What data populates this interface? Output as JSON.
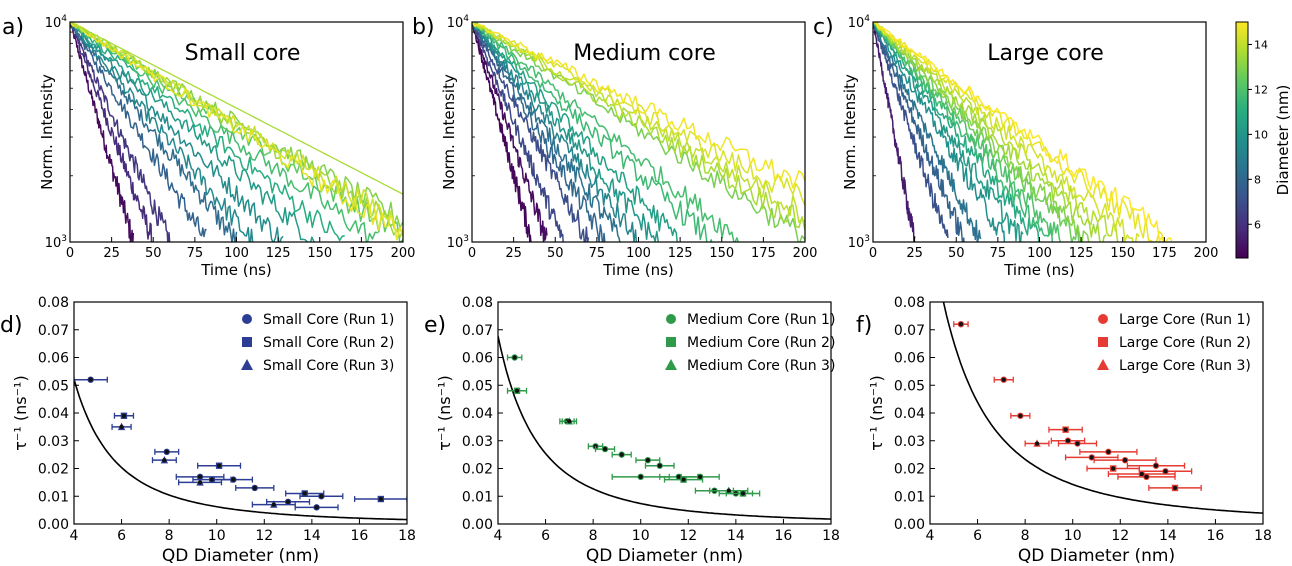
{
  "chart_data": [
    {
      "panel": "a)",
      "type": "line",
      "title": "Small core",
      "xlabel": "Time (ns)",
      "ylabel": "Norm. Intensity",
      "xlim": [
        0,
        200
      ],
      "ylim": [
        1000,
        10000
      ],
      "yscale": "log",
      "xticks": [
        "0",
        "25",
        "50",
        "75",
        "100",
        "125",
        "150",
        "175",
        "200"
      ],
      "yticks": [
        {
          "value": 1000,
          "label": "10^3"
        },
        {
          "value": 10000,
          "label": "10^4"
        }
      ],
      "series": [
        {
          "diameter": 4.8,
          "x_end": 38,
          "noisy": true
        },
        {
          "diameter": 5.8,
          "x_end": 50,
          "noisy": true
        },
        {
          "diameter": 6.2,
          "x_end": 60,
          "noisy": true
        },
        {
          "diameter": 7.8,
          "x_end": 82,
          "noisy": true
        },
        {
          "diameter": 8.2,
          "x_end": 100,
          "noisy": true
        },
        {
          "diameter": 9.4,
          "x_end": 110,
          "noisy": true
        },
        {
          "diameter": 9.6,
          "x_end": 128,
          "noisy": true
        },
        {
          "diameter": 10.2,
          "x_end": 148,
          "noisy": true
        },
        {
          "diameter": 11.0,
          "x_end": 165,
          "noisy": true
        },
        {
          "diameter": 11.8,
          "x_end": 185,
          "noisy": true
        },
        {
          "diameter": 12.4,
          "x_end": 200,
          "y_end": 1050,
          "noisy": true
        },
        {
          "diameter": 13.0,
          "x_end": 200,
          "y_end": 1250,
          "noisy": true
        },
        {
          "diameter": 13.4,
          "x_end": 200,
          "y_end": 1150,
          "noisy": true
        },
        {
          "diameter": 14.2,
          "x_end": 200,
          "y_end": 1200,
          "noisy": true
        },
        {
          "diameter": 14.6,
          "x_end": 200,
          "y_end": 1080,
          "noisy": true
        },
        {
          "diameter": 13.6,
          "x_end": 200,
          "y_end": 1650,
          "noisy": false
        }
      ]
    },
    {
      "panel": "b)",
      "type": "line",
      "title": "Medium core",
      "xlabel": "Time (ns)",
      "ylabel": "Norm. Intensity",
      "xlim": [
        0,
        200
      ],
      "ylim": [
        1000,
        10000
      ],
      "yscale": "log",
      "xticks": [
        "0",
        "25",
        "50",
        "75",
        "100",
        "125",
        "150",
        "175",
        "200"
      ],
      "yticks": [
        {
          "value": 1000,
          "label": "10^3"
        },
        {
          "value": 10000,
          "label": "10^4"
        }
      ],
      "series": [
        {
          "diameter": 4.7,
          "x_end": 36,
          "noisy": true
        },
        {
          "diameter": 4.9,
          "x_end": 45,
          "noisy": true
        },
        {
          "diameter": 6.8,
          "x_end": 55,
          "noisy": true
        },
        {
          "diameter": 7.0,
          "x_end": 70,
          "noisy": true
        },
        {
          "diameter": 8.0,
          "x_end": 80,
          "noisy": true
        },
        {
          "diameter": 8.4,
          "x_end": 90,
          "noisy": true
        },
        {
          "diameter": 9.2,
          "x_end": 100,
          "noisy": true
        },
        {
          "diameter": 10.0,
          "x_end": 112,
          "noisy": true
        },
        {
          "diameter": 10.4,
          "x_end": 125,
          "noisy": true
        },
        {
          "diameter": 11.6,
          "x_end": 145,
          "noisy": true
        },
        {
          "diameter": 11.8,
          "x_end": 162,
          "noisy": true
        },
        {
          "diameter": 12.8,
          "x_end": 200,
          "y_end": 1050,
          "noisy": true
        },
        {
          "diameter": 13.6,
          "x_end": 200,
          "y_end": 1200,
          "noisy": true
        },
        {
          "diameter": 14.0,
          "x_end": 200,
          "y_end": 1350,
          "noisy": true
        },
        {
          "diameter": 14.4,
          "x_end": 200,
          "y_end": 1550,
          "noisy": true
        },
        {
          "diameter": 14.8,
          "x_end": 200,
          "y_end": 1800,
          "noisy": true
        }
      ]
    },
    {
      "panel": "c)",
      "type": "line",
      "title": "Large core",
      "xlabel": "Time (ns)",
      "ylabel": "Norm. Intensity",
      "xlim": [
        0,
        200
      ],
      "ylim": [
        1000,
        10000
      ],
      "yscale": "log",
      "xticks": [
        "0",
        "25",
        "50",
        "75",
        "100",
        "125",
        "150",
        "175",
        "200"
      ],
      "yticks": [
        {
          "value": 1000,
          "label": "10^3"
        },
        {
          "value": 10000,
          "label": "10^4"
        }
      ],
      "series": [
        {
          "diameter": 5.3,
          "x_end": 25,
          "noisy": true
        },
        {
          "diameter": 7.1,
          "x_end": 45,
          "noisy": true
        },
        {
          "diameter": 7.8,
          "x_end": 55,
          "noisy": true
        },
        {
          "diameter": 8.5,
          "x_end": 65,
          "noisy": true
        },
        {
          "diameter": 9.7,
          "x_end": 80,
          "noisy": true
        },
        {
          "diameter": 10.2,
          "x_end": 90,
          "noisy": true
        },
        {
          "diameter": 10.8,
          "x_end": 100,
          "noisy": true
        },
        {
          "diameter": 11.6,
          "x_end": 108,
          "noisy": true
        },
        {
          "diameter": 12.0,
          "x_end": 115,
          "noisy": true
        },
        {
          "diameter": 12.6,
          "x_end": 125,
          "noisy": true
        },
        {
          "diameter": 13.0,
          "x_end": 130,
          "noisy": true
        },
        {
          "diameter": 13.5,
          "x_end": 140,
          "noisy": true
        },
        {
          "diameter": 13.8,
          "x_end": 150,
          "noisy": true
        },
        {
          "diameter": 14.3,
          "x_end": 160,
          "noisy": true
        },
        {
          "diameter": 14.6,
          "x_end": 175,
          "noisy": true
        },
        {
          "diameter": 15.0,
          "x_end": 182,
          "noisy": true
        }
      ]
    },
    {
      "type": "colorbar",
      "label": "Diameter (nm)",
      "colormap": "viridis",
      "range": [
        4.5,
        15
      ],
      "ticks": [
        "6",
        "8",
        "10",
        "12",
        "14"
      ]
    },
    {
      "panel": "d)",
      "type": "scatter",
      "xlabel": "QD Diameter (nm)",
      "ylabel": "τ⁻¹ (ns⁻¹)",
      "xlim": [
        4,
        18
      ],
      "ylim": [
        0,
        0.08
      ],
      "xticks": [
        "4",
        "6",
        "8",
        "10",
        "12",
        "14",
        "16",
        "18"
      ],
      "yticks": [
        "0.00",
        "0.01",
        "0.02",
        "0.03",
        "0.04",
        "0.05",
        "0.06",
        "0.07",
        "0.08"
      ],
      "color": "#2c3e93",
      "legend": {
        "position": "top-right",
        "entries": [
          {
            "marker": "circle",
            "label": "Small Core (Run 1)"
          },
          {
            "marker": "square",
            "label": "Small Core (Run 2)"
          },
          {
            "marker": "triangle",
            "label": "Small Core (Run 3)"
          }
        ]
      },
      "fit": {
        "a": 1.3,
        "n": 2.32
      },
      "points": [
        {
          "x": 4.7,
          "y": 0.052,
          "xerr": 0.7,
          "yerr": 0.0007,
          "marker": "circle"
        },
        {
          "x": 6.1,
          "y": 0.039,
          "xerr": 0.4,
          "yerr": 0.0008,
          "marker": "square"
        },
        {
          "x": 6.0,
          "y": 0.035,
          "xerr": 0.4,
          "yerr": 0.0007,
          "marker": "triangle"
        },
        {
          "x": 7.9,
          "y": 0.026,
          "xerr": 0.5,
          "yerr": 0.0006,
          "marker": "circle"
        },
        {
          "x": 7.8,
          "y": 0.023,
          "xerr": 0.5,
          "yerr": 0.0006,
          "marker": "triangle"
        },
        {
          "x": 9.3,
          "y": 0.017,
          "xerr": 1.0,
          "yerr": 0.0006,
          "marker": "circle"
        },
        {
          "x": 9.3,
          "y": 0.015,
          "xerr": 0.9,
          "yerr": 0.0006,
          "marker": "triangle"
        },
        {
          "x": 9.8,
          "y": 0.016,
          "xerr": 0.8,
          "yerr": 0.0006,
          "marker": "circle"
        },
        {
          "x": 10.1,
          "y": 0.021,
          "xerr": 0.9,
          "yerr": 0.0008,
          "marker": "square"
        },
        {
          "x": 10.7,
          "y": 0.016,
          "xerr": 0.8,
          "yerr": 0.0006,
          "marker": "circle"
        },
        {
          "x": 11.6,
          "y": 0.013,
          "xerr": 0.8,
          "yerr": 0.0006,
          "marker": "circle"
        },
        {
          "x": 12.4,
          "y": 0.007,
          "xerr": 0.9,
          "yerr": 0.0006,
          "marker": "triangle"
        },
        {
          "x": 13.0,
          "y": 0.008,
          "xerr": 0.9,
          "yerr": 0.0006,
          "marker": "circle"
        },
        {
          "x": 13.7,
          "y": 0.011,
          "xerr": 0.8,
          "yerr": 0.0006,
          "marker": "square"
        },
        {
          "x": 14.2,
          "y": 0.006,
          "xerr": 0.9,
          "yerr": 0.0006,
          "marker": "circle"
        },
        {
          "x": 14.4,
          "y": 0.01,
          "xerr": 0.9,
          "yerr": 0.0006,
          "marker": "circle"
        },
        {
          "x": 16.9,
          "y": 0.009,
          "xerr": 1.1,
          "yerr": 0.0006,
          "marker": "square"
        }
      ]
    },
    {
      "panel": "e)",
      "type": "scatter",
      "xlabel": "QD Diameter (nm)",
      "ylabel": "τ⁻¹ (ns⁻¹)",
      "xlim": [
        4,
        18
      ],
      "ylim": [
        0,
        0.08
      ],
      "xticks": [
        "4",
        "6",
        "8",
        "10",
        "12",
        "14",
        "16",
        "18"
      ],
      "yticks": [
        "0.00",
        "0.01",
        "0.02",
        "0.03",
        "0.04",
        "0.05",
        "0.06",
        "0.07",
        "0.08"
      ],
      "color": "#2e9a4a",
      "legend": {
        "position": "top-right",
        "entries": [
          {
            "marker": "circle",
            "label": "Medium Core (Run 1)"
          },
          {
            "marker": "square",
            "label": "Medium Core (Run 2)"
          },
          {
            "marker": "triangle",
            "label": "Medium Core (Run 3)"
          }
        ]
      },
      "fit": {
        "a": 1.94,
        "n": 2.42
      },
      "points": [
        {
          "x": 4.7,
          "y": 0.06,
          "xerr": 0.3,
          "yerr": 0.0008,
          "marker": "circle"
        },
        {
          "x": 4.8,
          "y": 0.048,
          "xerr": 0.4,
          "yerr": 0.0008,
          "marker": "square"
        },
        {
          "x": 6.9,
          "y": 0.037,
          "xerr": 0.3,
          "yerr": 0.0007,
          "marker": "circle"
        },
        {
          "x": 7.0,
          "y": 0.037,
          "xerr": 0.3,
          "yerr": 0.0007,
          "marker": "triangle"
        },
        {
          "x": 8.1,
          "y": 0.028,
          "xerr": 0.3,
          "yerr": 0.0006,
          "marker": "circle"
        },
        {
          "x": 8.5,
          "y": 0.027,
          "xerr": 0.4,
          "yerr": 0.0006,
          "marker": "circle"
        },
        {
          "x": 9.2,
          "y": 0.025,
          "xerr": 0.4,
          "yerr": 0.0006,
          "marker": "circle"
        },
        {
          "x": 10.0,
          "y": 0.017,
          "xerr": 1.2,
          "yerr": 0.0006,
          "marker": "circle"
        },
        {
          "x": 10.3,
          "y": 0.023,
          "xerr": 0.5,
          "yerr": 0.0006,
          "marker": "circle"
        },
        {
          "x": 10.8,
          "y": 0.021,
          "xerr": 0.6,
          "yerr": 0.0006,
          "marker": "circle"
        },
        {
          "x": 11.6,
          "y": 0.017,
          "xerr": 0.8,
          "yerr": 0.0006,
          "marker": "circle"
        },
        {
          "x": 11.8,
          "y": 0.016,
          "xerr": 0.8,
          "yerr": 0.0006,
          "marker": "square"
        },
        {
          "x": 12.5,
          "y": 0.017,
          "xerr": 0.8,
          "yerr": 0.0006,
          "marker": "circle"
        },
        {
          "x": 13.1,
          "y": 0.012,
          "xerr": 0.8,
          "yerr": 0.0006,
          "marker": "circle"
        },
        {
          "x": 13.7,
          "y": 0.012,
          "xerr": 0.8,
          "yerr": 0.0006,
          "marker": "triangle"
        },
        {
          "x": 14.0,
          "y": 0.011,
          "xerr": 0.7,
          "yerr": 0.0006,
          "marker": "circle"
        },
        {
          "x": 14.3,
          "y": 0.011,
          "xerr": 0.7,
          "yerr": 0.0006,
          "marker": "square"
        }
      ]
    },
    {
      "panel": "f)",
      "type": "scatter",
      "xlabel": "QD Diameter (nm)",
      "ylabel": "τ⁻¹ (ns⁻¹)",
      "xlim": [
        4,
        18
      ],
      "ylim": [
        0,
        0.08
      ],
      "xticks": [
        "4",
        "6",
        "8",
        "10",
        "12",
        "14",
        "16",
        "18"
      ],
      "yticks": [
        "0.00",
        "0.01",
        "0.02",
        "0.03",
        "0.04",
        "0.05",
        "0.06",
        "0.07",
        "0.08"
      ],
      "color": "#e53b33",
      "legend": {
        "position": "top-right",
        "entries": [
          {
            "marker": "circle",
            "label": "Large Core (Run 1)"
          },
          {
            "marker": "square",
            "label": "Large Core (Run 2)"
          },
          {
            "marker": "triangle",
            "label": "Large Core (Run 3)"
          }
        ]
      },
      "fit": {
        "a": 2.26,
        "n": 2.2
      },
      "points": [
        {
          "x": 5.3,
          "y": 0.072,
          "xerr": 0.3,
          "yerr": 0.0008,
          "marker": "circle"
        },
        {
          "x": 7.1,
          "y": 0.052,
          "xerr": 0.4,
          "yerr": 0.0007,
          "marker": "circle"
        },
        {
          "x": 7.8,
          "y": 0.039,
          "xerr": 0.4,
          "yerr": 0.0007,
          "marker": "circle"
        },
        {
          "x": 8.5,
          "y": 0.029,
          "xerr": 0.5,
          "yerr": 0.0006,
          "marker": "triangle"
        },
        {
          "x": 9.7,
          "y": 0.034,
          "xerr": 0.7,
          "yerr": 0.0007,
          "marker": "square"
        },
        {
          "x": 9.8,
          "y": 0.03,
          "xerr": 0.7,
          "yerr": 0.0006,
          "marker": "circle"
        },
        {
          "x": 10.2,
          "y": 0.029,
          "xerr": 0.8,
          "yerr": 0.0006,
          "marker": "circle"
        },
        {
          "x": 10.8,
          "y": 0.024,
          "xerr": 1.1,
          "yerr": 0.0006,
          "marker": "circle"
        },
        {
          "x": 11.5,
          "y": 0.026,
          "xerr": 1.2,
          "yerr": 0.0006,
          "marker": "circle"
        },
        {
          "x": 11.7,
          "y": 0.02,
          "xerr": 1.1,
          "yerr": 0.0006,
          "marker": "square"
        },
        {
          "x": 12.2,
          "y": 0.023,
          "xerr": 1.3,
          "yerr": 0.0006,
          "marker": "circle"
        },
        {
          "x": 12.9,
          "y": 0.018,
          "xerr": 1.4,
          "yerr": 0.0006,
          "marker": "circle"
        },
        {
          "x": 13.1,
          "y": 0.017,
          "xerr": 1.2,
          "yerr": 0.0006,
          "marker": "circle"
        },
        {
          "x": 13.5,
          "y": 0.021,
          "xerr": 1.2,
          "yerr": 0.0006,
          "marker": "circle"
        },
        {
          "x": 13.9,
          "y": 0.019,
          "xerr": 1.1,
          "yerr": 0.0006,
          "marker": "circle"
        },
        {
          "x": 14.3,
          "y": 0.013,
          "xerr": 1.1,
          "yerr": 0.0006,
          "marker": "square"
        }
      ]
    }
  ]
}
